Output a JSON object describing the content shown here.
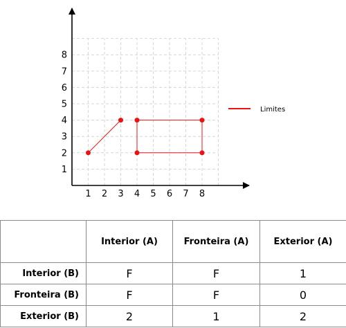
{
  "figure": {
    "x_ticks": [
      "1",
      "2",
      "3",
      "4",
      "5",
      "6",
      "7",
      "8"
    ],
    "y_ticks": [
      "1",
      "2",
      "3",
      "4",
      "5",
      "6",
      "7",
      "8"
    ],
    "legend": {
      "label": "Limites",
      "color": "#ee1111"
    },
    "grid": true,
    "line_a": {
      "points": [
        [
          1,
          2
        ],
        [
          3,
          4
        ]
      ]
    },
    "polygon_b": {
      "points": [
        [
          4,
          2
        ],
        [
          4,
          4
        ],
        [
          8,
          4
        ],
        [
          8,
          2
        ]
      ]
    }
  },
  "matrix": {
    "columns": [
      "Interior (A)",
      "Fronteira (A)",
      "Exterior (A)"
    ],
    "rows": [
      {
        "label": "Interior (B)",
        "cells": [
          "F",
          "F",
          "1"
        ]
      },
      {
        "label": "Fronteira (B)",
        "cells": [
          "F",
          "F",
          "0"
        ]
      },
      {
        "label": "Exterior (B)",
        "cells": [
          "2",
          "1",
          "2"
        ]
      }
    ]
  }
}
